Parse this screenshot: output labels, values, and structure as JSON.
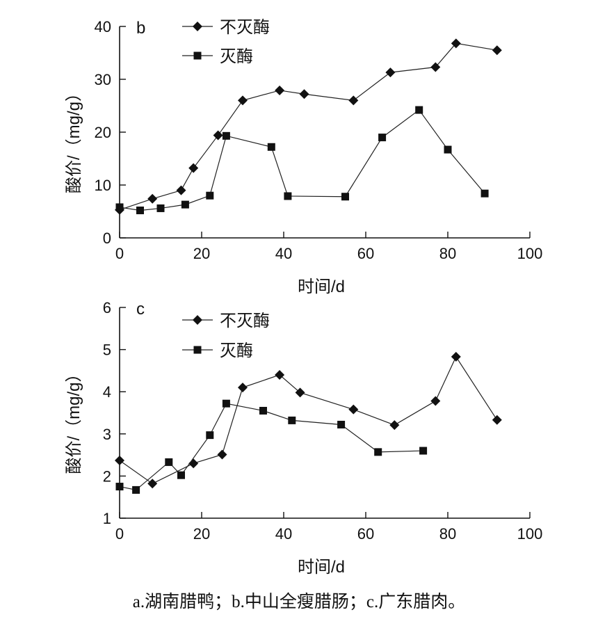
{
  "caption": "a.湖南腊鸭；b.中山全瘦腊肠；c.广东腊肉。",
  "chart_data": [
    {
      "type": "line",
      "panel": "b",
      "xlabel": "时间/d",
      "ylabel": "酸价/（mg/g）",
      "xlim": [
        0,
        100
      ],
      "ylim": [
        0,
        40
      ],
      "xticks": [
        "0",
        "20",
        "40",
        "60",
        "80",
        "100"
      ],
      "yticks": [
        "0",
        "10",
        "20",
        "30",
        "40"
      ],
      "legend_position": "top-left",
      "series": [
        {
          "name": "不灭酶",
          "marker": "diamond",
          "x": [
            0,
            8,
            15,
            18,
            24,
            30,
            39,
            45,
            57,
            66,
            77,
            82,
            92
          ],
          "y": [
            5.3,
            7.4,
            9.0,
            13.2,
            19.4,
            26.0,
            27.9,
            27.2,
            26.0,
            31.3,
            32.3,
            36.8,
            35.5
          ]
        },
        {
          "name": "灭酶",
          "marker": "square",
          "x": [
            0,
            5,
            10,
            16,
            22,
            26,
            37,
            41,
            55,
            64,
            73,
            80,
            89
          ],
          "y": [
            5.8,
            5.2,
            5.6,
            6.3,
            8.0,
            19.3,
            17.2,
            7.9,
            7.8,
            19.0,
            24.2,
            16.7,
            8.4
          ]
        }
      ]
    },
    {
      "type": "line",
      "panel": "c",
      "xlabel": "时间/d",
      "ylabel": "酸价/（mg/g）",
      "xlim": [
        0,
        100
      ],
      "ylim": [
        1,
        6
      ],
      "xticks": [
        "0",
        "20",
        "40",
        "60",
        "80",
        "100"
      ],
      "yticks": [
        "1",
        "2",
        "3",
        "4",
        "5",
        "6"
      ],
      "legend_position": "top-left",
      "series": [
        {
          "name": "不灭酶",
          "marker": "diamond",
          "x": [
            0,
            8,
            18,
            25,
            30,
            39,
            44,
            57,
            67,
            77,
            82,
            92
          ],
          "y": [
            2.37,
            1.82,
            2.3,
            2.51,
            4.1,
            4.4,
            3.98,
            3.58,
            3.21,
            3.78,
            4.83,
            3.33
          ]
        },
        {
          "name": "灭酶",
          "marker": "square",
          "x": [
            0,
            4,
            12,
            15,
            22,
            26,
            35,
            42,
            54,
            63,
            74
          ],
          "y": [
            1.75,
            1.67,
            2.33,
            2.02,
            2.97,
            3.72,
            3.55,
            3.32,
            3.22,
            2.57,
            2.6
          ]
        }
      ]
    }
  ]
}
